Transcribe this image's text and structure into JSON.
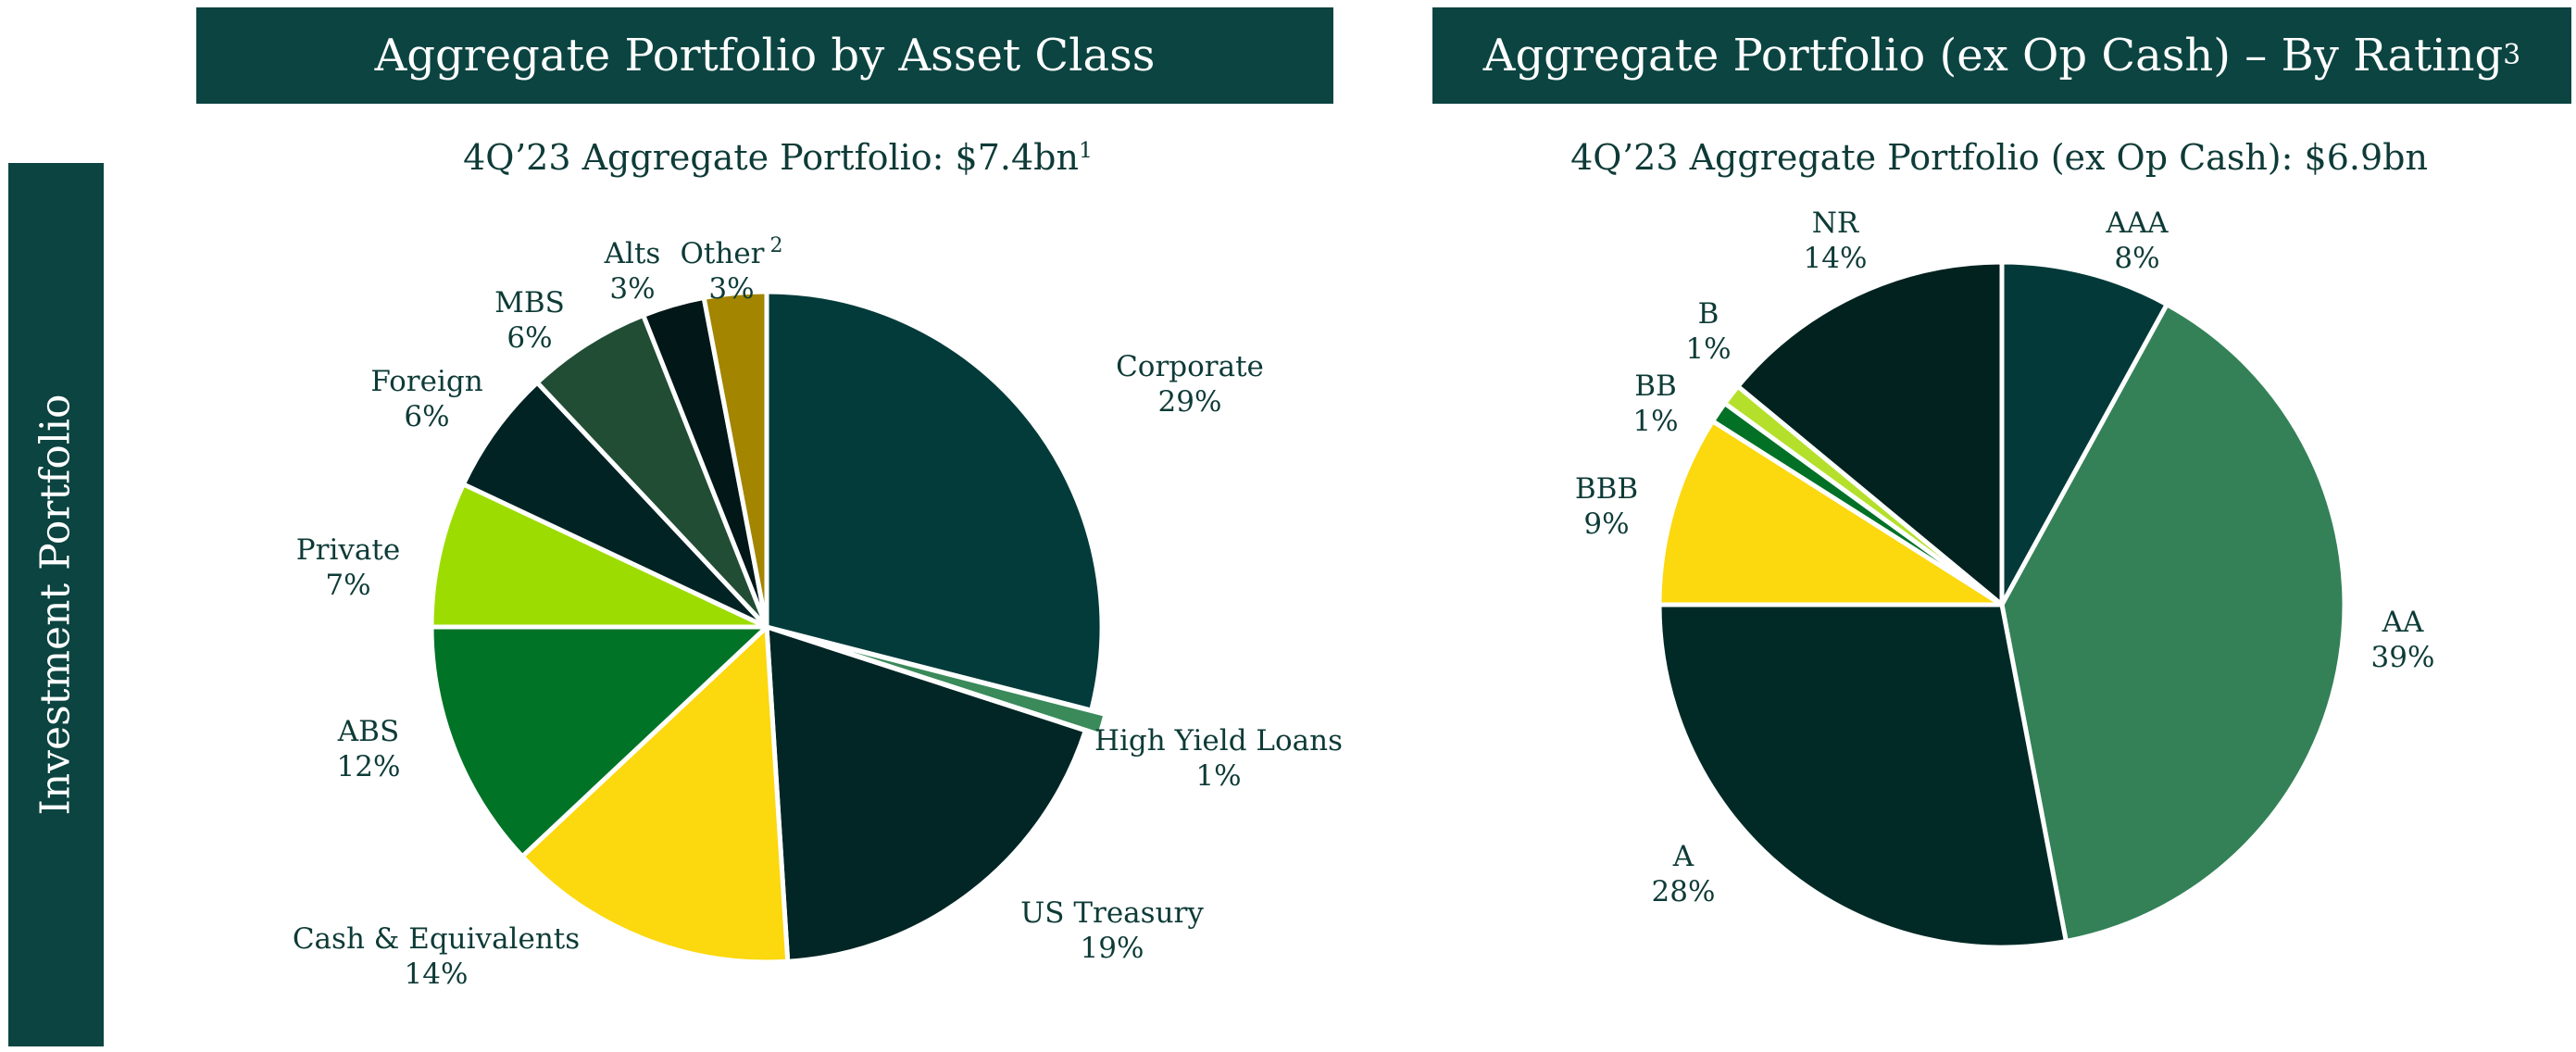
{
  "sidebar": {
    "label": "Investment Portfolio"
  },
  "headers": {
    "left": {
      "title": "Aggregate Portfolio by Asset Class",
      "footnote": ""
    },
    "right": {
      "title": "Aggregate Portfolio (ex Op Cash) – By Rating",
      "footnote": "3"
    }
  },
  "colors": {
    "header_bg": "#0b4441",
    "text": "#0e3b37",
    "slice_border": "#ffffff"
  },
  "chart_data": [
    {
      "type": "pie",
      "title": "4Q’23 Aggregate Portfolio: $7.4bn",
      "title_footnote": "1",
      "start": "12 o'clock",
      "direction": "clockwise",
      "slices": [
        {
          "label": "Corporate",
          "value": 29,
          "pct_label": "29%",
          "color": "#023b3a"
        },
        {
          "label": "High Yield Loans",
          "value": 1,
          "pct_label": "1%",
          "color": "#3a8a5a"
        },
        {
          "label": "US Treasury",
          "value": 19,
          "pct_label": "19%",
          "color": "#012625"
        },
        {
          "label": "Cash & Equivalents",
          "value": 14,
          "pct_label": "14%",
          "color": "#fcd80e"
        },
        {
          "label": "ABS",
          "value": 12,
          "pct_label": "12%",
          "color": "#007326"
        },
        {
          "label": "Private",
          "value": 7,
          "pct_label": "7%",
          "color": "#9ddc00"
        },
        {
          "label": "Foreign",
          "value": 6,
          "pct_label": "6%",
          "color": "#022324"
        },
        {
          "label": "MBS",
          "value": 6,
          "pct_label": "6%",
          "color": "#214d35"
        },
        {
          "label": "Alts",
          "value": 3,
          "pct_label": "3%",
          "color": "#011718"
        },
        {
          "label": "Other",
          "footnote": "2",
          "value": 3,
          "pct_label": "3%",
          "color": "#a38500"
        }
      ]
    },
    {
      "type": "pie",
      "title": "4Q’23 Aggregate Portfolio (ex Op Cash): $6.9bn",
      "title_footnote": "",
      "start": "12 o'clock",
      "direction": "clockwise",
      "slices": [
        {
          "label": "AAA",
          "value": 8,
          "pct_label": "8%",
          "color": "#033a39"
        },
        {
          "label": "AA",
          "value": 39,
          "pct_label": "39%",
          "color": "#348157"
        },
        {
          "label": "A",
          "value": 28,
          "pct_label": "28%",
          "color": "#012a26"
        },
        {
          "label": "BBB",
          "value": 9,
          "pct_label": "9%",
          "color": "#fcd80e"
        },
        {
          "label": "BB",
          "value": 1,
          "pct_label": "1%",
          "color": "#027126"
        },
        {
          "label": "B",
          "value": 1,
          "pct_label": "1%",
          "color": "#b4e02c"
        },
        {
          "label": "NR",
          "value": 14,
          "pct_label": "14%",
          "color": "#01221f"
        }
      ]
    }
  ]
}
